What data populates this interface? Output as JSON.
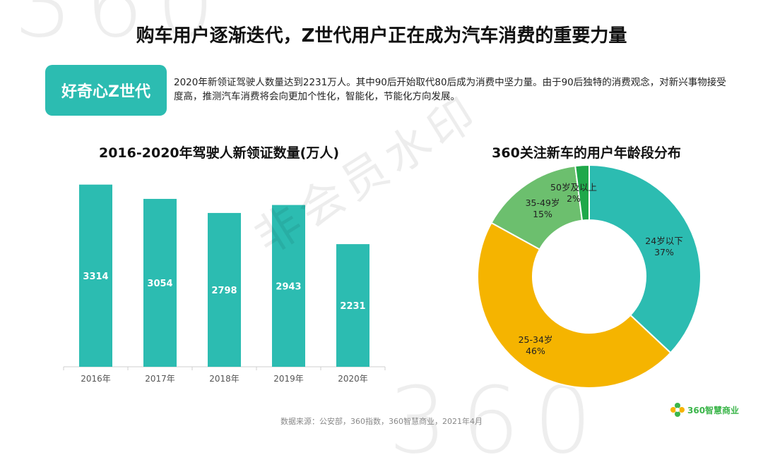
{
  "header": {
    "title": "购车用户逐渐迭代，Z世代用户正在成为汽车消费的重要力量"
  },
  "badge": {
    "label": "好奇心Z世代"
  },
  "description": "2020年新领证驾驶人数量达到2231万人。其中90后开始取代80后成为消费中坚力量。由于90后独特的消费观念，对新兴事物接受度高，推测汽车消费将会向更加个性化，智能化，节能化方向发展。",
  "watermark": "非会员水印",
  "colors": {
    "teal": "#2cbcb1",
    "orange": "#f5b400",
    "lightgreen": "#6cbf6e",
    "green": "#1fa84a"
  },
  "chart_data": [
    {
      "type": "bar",
      "title": "2016-2020年驾驶人新领证数量(万人)",
      "categories": [
        "2016年",
        "2017年",
        "2018年",
        "2019年",
        "2020年"
      ],
      "values": [
        3314,
        3054,
        2798,
        2943,
        2231
      ],
      "ylim": [
        0,
        3400
      ],
      "xlabel": "",
      "ylabel": "",
      "color": "#2cbcb1"
    },
    {
      "type": "pie",
      "style": "donut",
      "title": "360关注新车的用户年龄段分布",
      "slices": [
        {
          "label": "24岁以下",
          "value": 37,
          "pct_label": "37%",
          "color": "#2cbcb1"
        },
        {
          "label": "25-34岁",
          "value": 46,
          "pct_label": "46%",
          "color": "#f5b400"
        },
        {
          "label": "35-49岁",
          "value": 15,
          "pct_label": "15%",
          "color": "#6cbf6e"
        },
        {
          "label": "50岁及以上",
          "value": 2,
          "pct_label": "2%",
          "color": "#1fa84a"
        }
      ]
    }
  ],
  "footer": {
    "source": "数据来源：公安部，360指数，360智慧商业，2021年4月",
    "logo_text": "360智慧商业"
  }
}
